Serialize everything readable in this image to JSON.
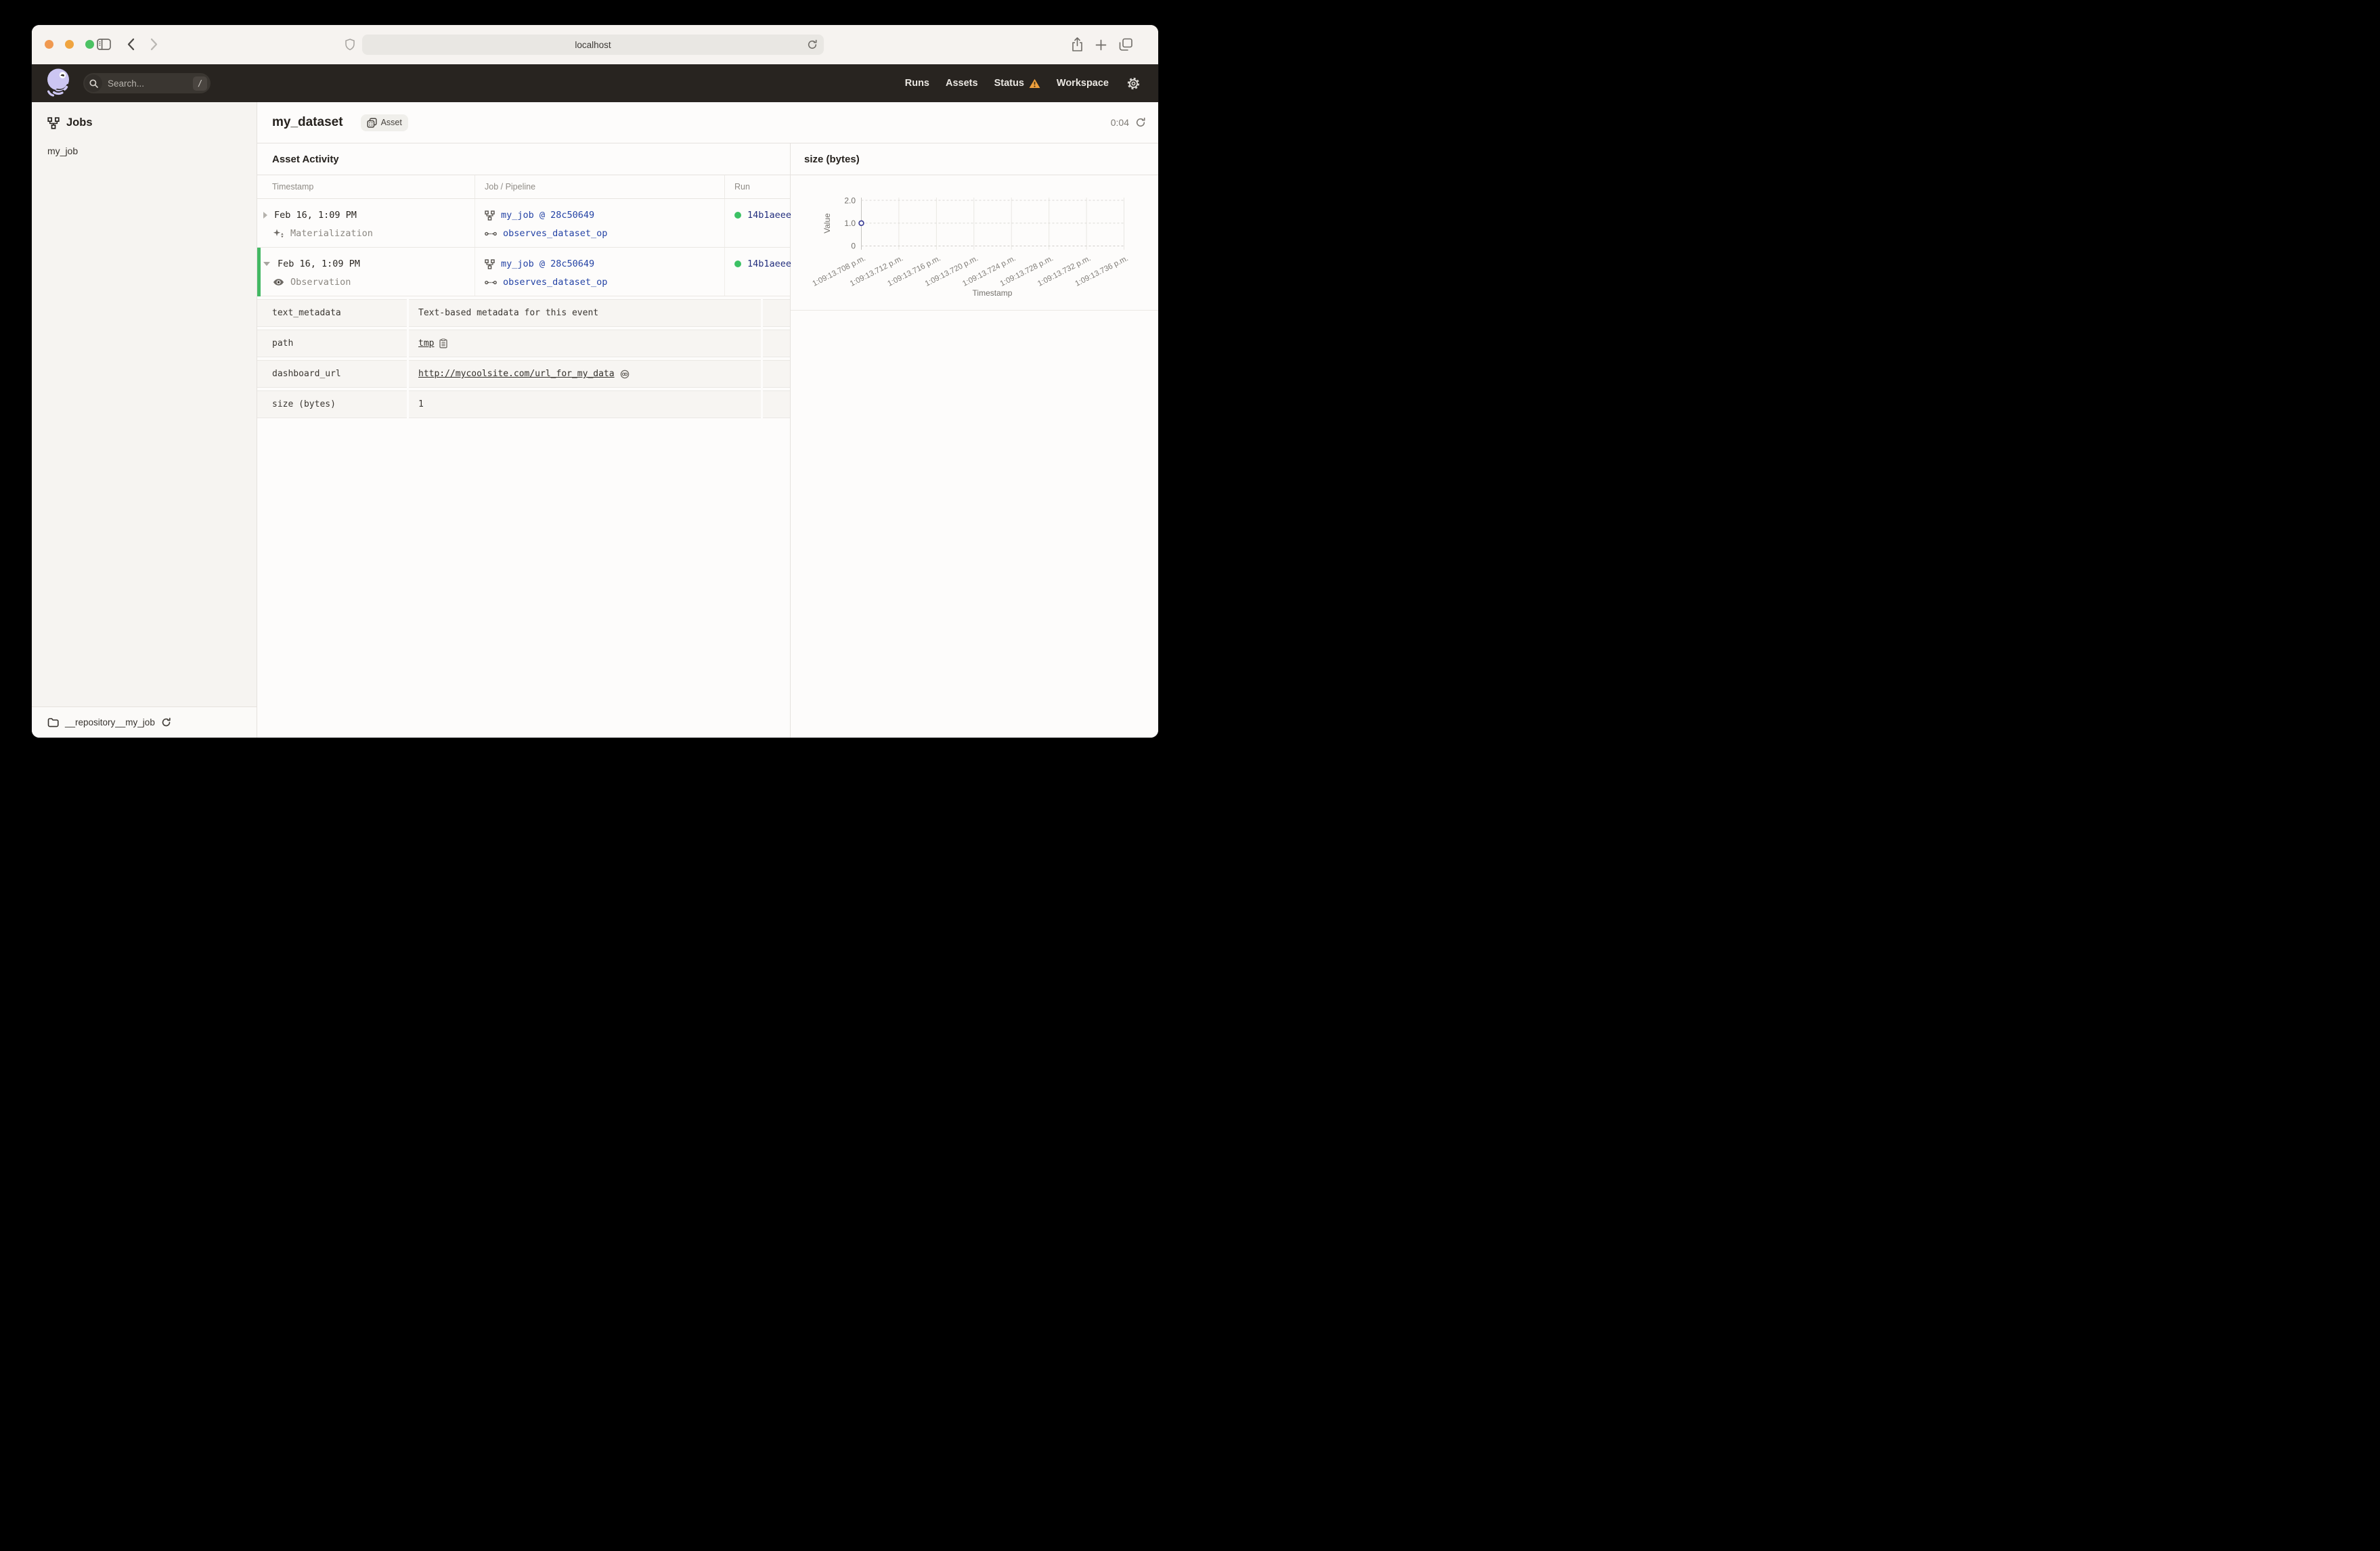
{
  "browser": {
    "url": "localhost"
  },
  "header": {
    "search_placeholder": "Search...",
    "search_shortcut": "/",
    "nav": [
      {
        "label": "Runs"
      },
      {
        "label": "Assets"
      },
      {
        "label": "Status",
        "warning": true
      },
      {
        "label": "Workspace"
      }
    ]
  },
  "sidebar": {
    "title": "Jobs",
    "items": [
      {
        "label": "my_job"
      }
    ],
    "footer": {
      "repository": "__repository__my_job"
    }
  },
  "asset": {
    "title": "my_dataset",
    "badge": "Asset",
    "timer": "0:04"
  },
  "activity": {
    "heading": "Asset Activity",
    "columns": [
      "Timestamp",
      "Job / Pipeline",
      "Run"
    ],
    "rows": [
      {
        "timestamp": "Feb 16, 1:09 PM",
        "event_type": "Materialization",
        "job": "my_job @ 28c50649",
        "op": "observes_dataset_op",
        "run_id": "14b1aeee",
        "expanded": false
      },
      {
        "timestamp": "Feb 16, 1:09 PM",
        "event_type": "Observation",
        "job": "my_job @ 28c50649",
        "op": "observes_dataset_op",
        "run_id": "14b1aeee",
        "expanded": true
      }
    ],
    "metadata": [
      {
        "key": "text_metadata",
        "value": "Text-based metadata for this event",
        "type": "text"
      },
      {
        "key": "path",
        "value": "tmp",
        "type": "path"
      },
      {
        "key": "dashboard_url",
        "value": "http://mycoolsite.com/url_for_my_data",
        "type": "url"
      },
      {
        "key": "size (bytes)",
        "value": "1",
        "type": "text"
      }
    ]
  },
  "chart_data": {
    "type": "scatter",
    "title": "size (bytes)",
    "xlabel": "Timestamp",
    "ylabel": "Value",
    "ylim": [
      0,
      2
    ],
    "y_ticks": [
      "2.0",
      "1.0",
      "0"
    ],
    "x_tick_labels": [
      "1:09:13.708 p.m.",
      "1:09:13.712 p.m.",
      "1:09:13.716 p.m.",
      "1:09:13.720 p.m.",
      "1:09:13.724 p.m.",
      "1:09:13.728 p.m.",
      "1:09:13.732 p.m.",
      "1:09:13.736 p.m."
    ],
    "points": [
      {
        "x": "1:09:13.708 p.m.",
        "y": 1
      }
    ],
    "grid": true,
    "legend": false
  },
  "colors": {
    "link_blue": "#2443a5",
    "run_green": "#3cc164",
    "selected_bar_green": "#43b863",
    "warning_orange": "#efa03d",
    "logo_lavender": "#ccc6f2",
    "header_dark": "#282420"
  },
  "icons": {
    "traffic": [
      "close",
      "minimize",
      "maximize"
    ],
    "event_types": {
      "Materialization": "sparkle-icon",
      "Observation": "eye-icon"
    }
  }
}
